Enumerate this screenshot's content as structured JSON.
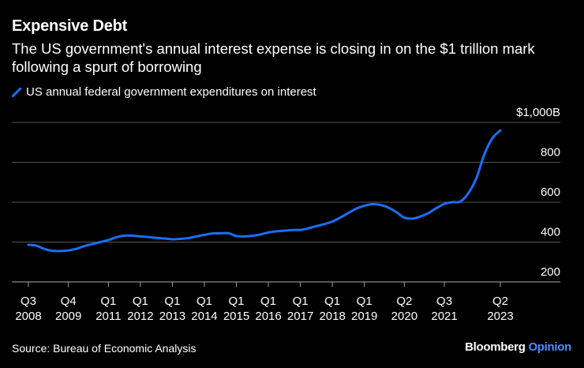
{
  "header": {
    "title": "Expensive Debt",
    "subtitle": "The US government's annual interest expense is closing in on the $1 trillion mark following a spurt of borrowing"
  },
  "legend": {
    "label": "US annual federal government expenditures on interest"
  },
  "footer": {
    "source": "Source: Bureau of Economic Analysis",
    "brand": "Bloomberg",
    "brand_suffix": "Opinion"
  },
  "colors": {
    "series": "#1a6ef5",
    "grid": "#555555",
    "background": "#000000"
  },
  "chart_data": {
    "type": "line",
    "title": "Expensive Debt",
    "subtitle": "The US government's annual interest expense is closing in on the $1 trillion mark following a spurt of borrowing",
    "ylim": [
      200,
      1000
    ],
    "y_ticks": [
      {
        "value": 1000,
        "label": "$1,000B"
      },
      {
        "value": 800,
        "label": "800"
      },
      {
        "value": 600,
        "label": "600"
      },
      {
        "value": 400,
        "label": "400"
      },
      {
        "value": 200,
        "label": "200"
      }
    ],
    "x_ticks": [
      {
        "q": "Q3",
        "year": "2008",
        "x": 2008.5
      },
      {
        "q": "Q4",
        "year": "2009",
        "x": 2009.75
      },
      {
        "q": "Q1",
        "year": "2011",
        "x": 2011.0
      },
      {
        "q": "Q1",
        "year": "2012",
        "x": 2012.0
      },
      {
        "q": "Q1",
        "year": "2013",
        "x": 2013.0
      },
      {
        "q": "Q1",
        "year": "2014",
        "x": 2014.0
      },
      {
        "q": "Q1",
        "year": "2015",
        "x": 2015.0
      },
      {
        "q": "Q1",
        "year": "2016",
        "x": 2016.0
      },
      {
        "q": "Q1",
        "year": "2017",
        "x": 2017.0
      },
      {
        "q": "Q1",
        "year": "2018",
        "x": 2018.0
      },
      {
        "q": "Q1",
        "year": "2019",
        "x": 2019.0
      },
      {
        "q": "Q2",
        "year": "2020",
        "x": 2020.25
      },
      {
        "q": "Q3",
        "year": "2021",
        "x": 2021.5
      },
      {
        "q": "Q2",
        "year": "2023",
        "x": 2023.25
      }
    ],
    "xlim": [
      2008.5,
      2023.25
    ],
    "series": [
      {
        "name": "US annual federal government expenditures on interest",
        "points": [
          [
            2008.5,
            386
          ],
          [
            2008.75,
            382
          ],
          [
            2009.0,
            365
          ],
          [
            2009.25,
            356
          ],
          [
            2009.5,
            355
          ],
          [
            2009.75,
            358
          ],
          [
            2010.0,
            366
          ],
          [
            2010.25,
            380
          ],
          [
            2010.5,
            390
          ],
          [
            2010.75,
            400
          ],
          [
            2011.0,
            410
          ],
          [
            2011.25,
            424
          ],
          [
            2011.5,
            432
          ],
          [
            2011.75,
            432
          ],
          [
            2012.0,
            428
          ],
          [
            2012.25,
            425
          ],
          [
            2012.5,
            421
          ],
          [
            2012.75,
            418
          ],
          [
            2013.0,
            414
          ],
          [
            2013.25,
            416
          ],
          [
            2013.5,
            420
          ],
          [
            2013.75,
            428
          ],
          [
            2014.0,
            436
          ],
          [
            2014.25,
            443
          ],
          [
            2014.5,
            444
          ],
          [
            2014.75,
            444
          ],
          [
            2015.0,
            430
          ],
          [
            2015.25,
            428
          ],
          [
            2015.5,
            431
          ],
          [
            2015.75,
            438
          ],
          [
            2016.0,
            448
          ],
          [
            2016.25,
            454
          ],
          [
            2016.5,
            457
          ],
          [
            2016.75,
            460
          ],
          [
            2017.0,
            461
          ],
          [
            2017.25,
            469
          ],
          [
            2017.5,
            480
          ],
          [
            2017.75,
            490
          ],
          [
            2018.0,
            503
          ],
          [
            2018.25,
            523
          ],
          [
            2018.5,
            546
          ],
          [
            2018.75,
            568
          ],
          [
            2019.0,
            582
          ],
          [
            2019.25,
            590
          ],
          [
            2019.5,
            586
          ],
          [
            2019.75,
            573
          ],
          [
            2020.0,
            550
          ],
          [
            2020.25,
            522
          ],
          [
            2020.5,
            518
          ],
          [
            2020.75,
            528
          ],
          [
            2021.0,
            545
          ],
          [
            2021.25,
            570
          ],
          [
            2021.5,
            591
          ],
          [
            2021.75,
            600
          ],
          [
            2022.0,
            603
          ],
          [
            2022.25,
            645
          ],
          [
            2022.5,
            720
          ],
          [
            2022.75,
            840
          ],
          [
            2023.0,
            920
          ],
          [
            2023.25,
            960
          ]
        ]
      }
    ]
  }
}
